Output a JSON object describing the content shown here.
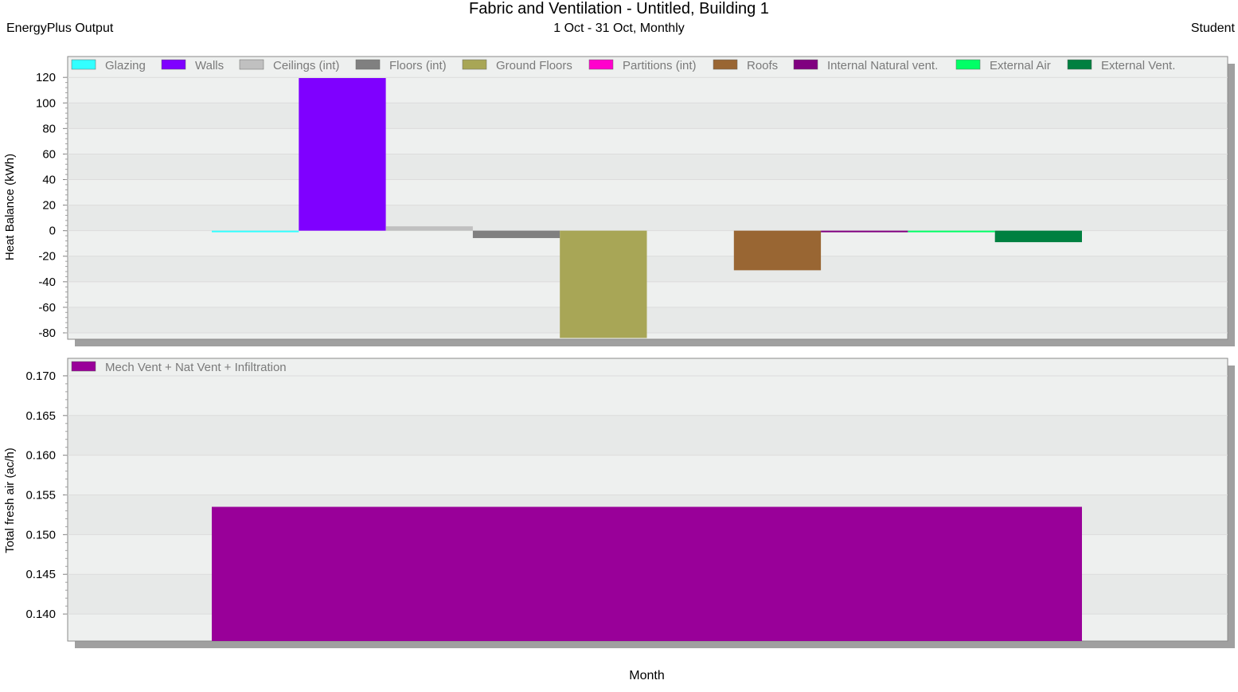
{
  "header": {
    "title": "Fabric and Ventilation - Untitled, Building 1",
    "subtitle": "1 Oct - 31 Oct, Monthly",
    "left": "EnergyPlus Output",
    "right": "Student"
  },
  "xlabel": "Month",
  "chart_data": [
    {
      "type": "bar",
      "ylabel": "Heat Balance (kWh)",
      "ylim": [
        -85,
        122
      ],
      "yticks": [
        120,
        100,
        80,
        60,
        40,
        20,
        0,
        -20,
        -40,
        -60,
        -80
      ],
      "grid": true,
      "legend_position": "top",
      "series": [
        {
          "name": "Glazing",
          "color": "#33ffff",
          "value": -1.0
        },
        {
          "name": "Walls",
          "color": "#7f00ff",
          "value": 119.5
        },
        {
          "name": "Ceilings (int)",
          "color": "#c0c0c0",
          "value": 3.4
        },
        {
          "name": "Floors (int)",
          "color": "#808080",
          "value": -5.8
        },
        {
          "name": "Ground Floors",
          "color": "#a8a656",
          "value": -84.0
        },
        {
          "name": "Partitions (int)",
          "color": "#ff00cc",
          "value": 0
        },
        {
          "name": "Roofs",
          "color": "#996633",
          "value": -31.0
        },
        {
          "name": "Internal Natural vent.",
          "color": "#800080",
          "value": -1.0
        },
        {
          "name": "External Air",
          "color": "#00ff66",
          "value": -0.8
        },
        {
          "name": "External Vent.",
          "color": "#008040",
          "value": -9.0
        }
      ]
    },
    {
      "type": "bar",
      "ylabel": "Total fresh air (ac/h)",
      "ylim": [
        0.1366,
        0.172
      ],
      "yticks": [
        0.17,
        0.165,
        0.16,
        0.155,
        0.15,
        0.145,
        0.14
      ],
      "tick_labels": [
        "0.170",
        "0.165",
        "0.160",
        "0.155",
        "0.150",
        "0.145",
        "0.140"
      ],
      "grid": true,
      "legend_position": "top-left",
      "series": [
        {
          "name": "Mech Vent + Nat Vent + Infiltration",
          "color": "#990099",
          "value": 0.1535
        }
      ]
    }
  ]
}
